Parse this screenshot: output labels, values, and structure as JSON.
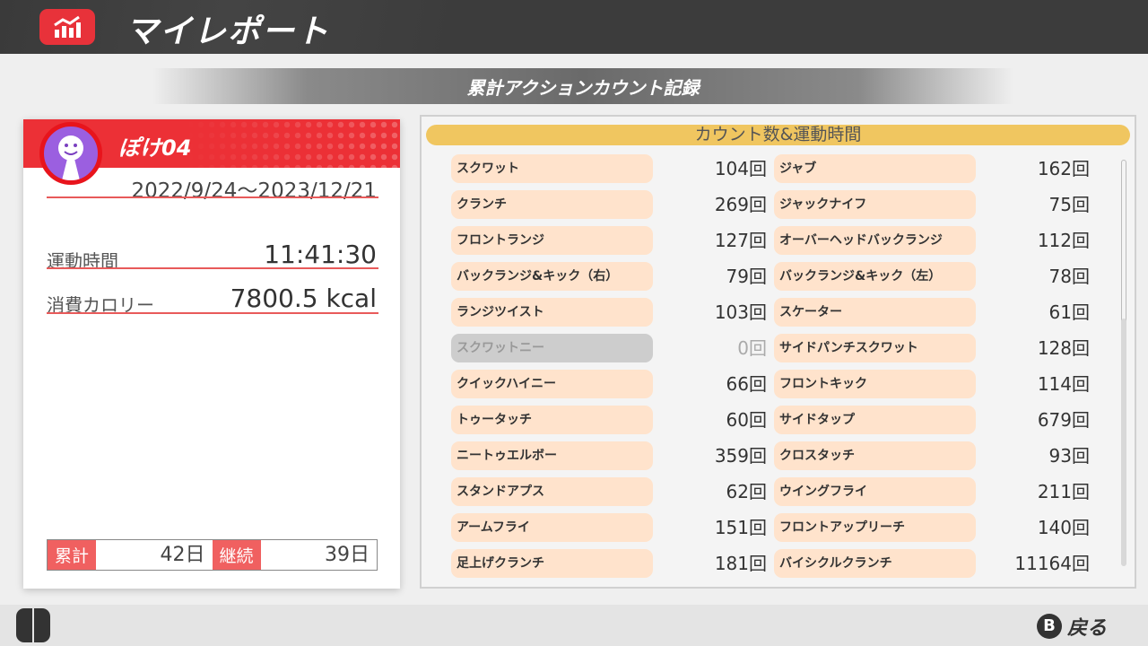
{
  "header": {
    "title": "マイレポート",
    "icon": "chart-icon"
  },
  "section_title": "累計アクションカウント記録",
  "profile": {
    "username": "ぽけ04",
    "period": "2022/9/24〜2023/12/21",
    "exercise_time_label": "運動時間",
    "exercise_time": "11:41:30",
    "calories_label": "消費カロリー",
    "calories": "7800.5 kcal",
    "total_label": "累計",
    "total_days": "42日",
    "streak_label": "継続",
    "streak_days": "39日"
  },
  "counts": {
    "title": "カウント数&運動時間",
    "left": [
      {
        "name": "スクワット",
        "count": "104回"
      },
      {
        "name": "クランチ",
        "count": "269回"
      },
      {
        "name": "フロントランジ",
        "count": "127回"
      },
      {
        "name": "バックランジ&キック（右）",
        "count": "79回"
      },
      {
        "name": "ランジツイスト",
        "count": "103回"
      },
      {
        "name": "スクワットニー",
        "count": "0回",
        "disabled": true
      },
      {
        "name": "クイックハイニー",
        "count": "66回"
      },
      {
        "name": "トゥータッチ",
        "count": "60回"
      },
      {
        "name": "ニートゥエルボー",
        "count": "359回"
      },
      {
        "name": "スタンドアプス",
        "count": "62回"
      },
      {
        "name": "アームフライ",
        "count": "151回"
      },
      {
        "name": "足上げクランチ",
        "count": "181回"
      }
    ],
    "right": [
      {
        "name": "ジャブ",
        "count": "162回"
      },
      {
        "name": "ジャックナイフ",
        "count": "75回"
      },
      {
        "name": "オーバーヘッドバックランジ",
        "count": "112回"
      },
      {
        "name": "バックランジ&キック（左）",
        "count": "78回"
      },
      {
        "name": "スケーター",
        "count": "61回"
      },
      {
        "name": "サイドパンチスクワット",
        "count": "128回"
      },
      {
        "name": "フロントキック",
        "count": "114回"
      },
      {
        "name": "サイドタップ",
        "count": "679回"
      },
      {
        "name": "クロスタッチ",
        "count": "93回"
      },
      {
        "name": "ウイングフライ",
        "count": "211回"
      },
      {
        "name": "フロントアップリーチ",
        "count": "140回"
      },
      {
        "name": "バイシクルクランチ",
        "count": "11164回"
      }
    ]
  },
  "footer": {
    "back_button": "B",
    "back_label": "戻る"
  }
}
